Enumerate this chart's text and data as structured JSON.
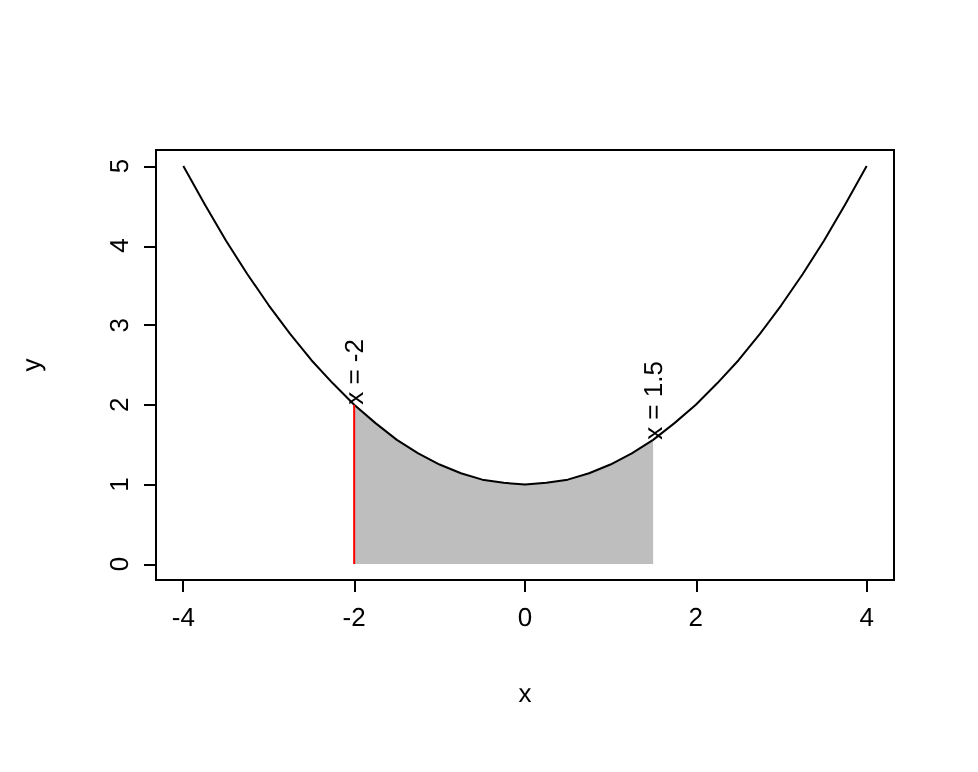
{
  "chart_data": {
    "type": "line",
    "xlabel": "x",
    "ylabel": "y",
    "xlim": [
      -4.32,
      4.32
    ],
    "xticks": [
      -4,
      -2,
      0,
      2,
      4
    ],
    "ylim": [
      -0.2,
      5.2
    ],
    "yticks": [
      0,
      1,
      2,
      3,
      4,
      5
    ],
    "grid": false,
    "marker": "none",
    "line_style": "solid",
    "series": [
      {
        "type": "area",
        "color": "#bebebe",
        "x": [
          -2,
          -1.75,
          -1.5,
          -1.25,
          -1,
          -0.75,
          -0.5,
          -0.25,
          0,
          0.25,
          0.5,
          0.75,
          1,
          1.25,
          1.5
        ],
        "values": [
          2,
          1.77,
          1.56,
          1.39,
          1.25,
          1.14,
          1.06,
          1.02,
          1,
          1.02,
          1.06,
          1.14,
          1.25,
          1.39,
          1.56
        ]
      },
      {
        "color": "#000000",
        "x": [
          -4,
          -3.75,
          -3.5,
          -3.25,
          -3,
          -2.75,
          -2.5,
          -2.25,
          -2,
          -1.75,
          -1.5,
          -1.25,
          -1,
          -0.75,
          -0.5,
          -0.25,
          0,
          0.25,
          0.5,
          0.75,
          1,
          1.25,
          1.5,
          1.75,
          2,
          2.25,
          2.5,
          2.75,
          3,
          3.25,
          3.5,
          3.75,
          4
        ],
        "values": [
          5,
          4.52,
          4.06,
          3.64,
          3.25,
          2.89,
          2.56,
          2.27,
          2,
          1.77,
          1.56,
          1.39,
          1.25,
          1.14,
          1.06,
          1.02,
          1,
          1.02,
          1.06,
          1.14,
          1.25,
          1.39,
          1.56,
          1.77,
          2,
          2.27,
          2.56,
          2.89,
          3.25,
          3.64,
          4.06,
          4.52,
          5
        ]
      },
      {
        "color": "#ff0000",
        "x": [
          -2,
          -2
        ],
        "values": [
          0,
          2
        ]
      }
    ],
    "annotations": [
      {
        "text": "x = -2",
        "x": -2,
        "y": 2
      },
      {
        "text": "x = 1.5",
        "x": 1.5,
        "y": 1.56
      }
    ]
  }
}
